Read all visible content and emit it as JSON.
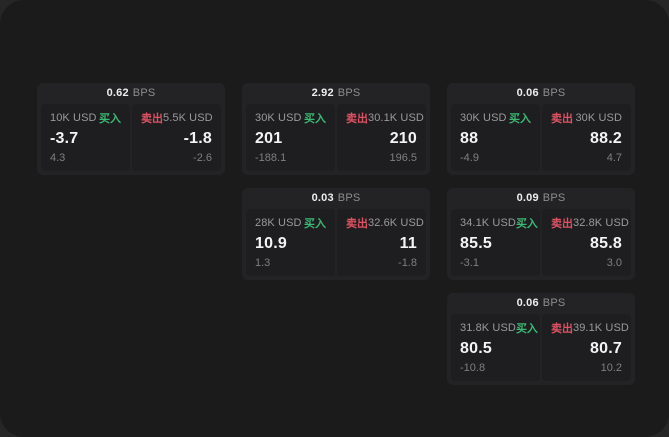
{
  "colors": {
    "buy": "#3bb873",
    "sell": "#dd5263",
    "window_bg": "#1b1b1c",
    "card_bg": "#232325",
    "panel_bg": "#1e1e20"
  },
  "bps_unit": "BPS",
  "cards": [
    {
      "row": 1,
      "col": 1,
      "bps_value": "0.62",
      "bps_label": "BPS",
      "buy": {
        "amount": "10K USD",
        "side": "买入",
        "price": "-3.7",
        "delta": "4.3"
      },
      "sell": {
        "side": "卖出",
        "amount": "5.5K USD",
        "price": "-1.8",
        "delta": "-2.6"
      }
    },
    {
      "row": 1,
      "col": 2,
      "bps_value": "2.92",
      "bps_label": "BPS",
      "buy": {
        "amount": "30K USD",
        "side": "买入",
        "price": "201",
        "delta": "-188.1"
      },
      "sell": {
        "side": "卖出",
        "amount": "30.1K USD",
        "price": "210",
        "delta": "196.5"
      }
    },
    {
      "row": 1,
      "col": 3,
      "bps_value": "0.06",
      "bps_label": "BPS",
      "buy": {
        "amount": "30K USD",
        "side": "买入",
        "price": "88",
        "delta": "-4.9"
      },
      "sell": {
        "side": "卖出",
        "amount": "30K USD",
        "price": "88.2",
        "delta": "4.7"
      }
    },
    {
      "row": 2,
      "col": 2,
      "bps_value": "0.03",
      "bps_label": "BPS",
      "buy": {
        "amount": "28K USD",
        "side": "买入",
        "price": "10.9",
        "delta": "1.3"
      },
      "sell": {
        "side": "卖出",
        "amount": "32.6K USD",
        "price": "11",
        "delta": "-1.8"
      }
    },
    {
      "row": 2,
      "col": 3,
      "bps_value": "0.09",
      "bps_label": "BPS",
      "buy": {
        "amount": "34.1K USD",
        "side": "买入",
        "price": "85.5",
        "delta": "-3.1"
      },
      "sell": {
        "side": "卖出",
        "amount": "32.8K USD",
        "price": "85.8",
        "delta": "3.0"
      }
    },
    {
      "row": 3,
      "col": 3,
      "bps_value": "0.06",
      "bps_label": "BPS",
      "buy": {
        "amount": "31.8K USD",
        "side": "买入",
        "price": "80.5",
        "delta": "-10.8"
      },
      "sell": {
        "side": "卖出",
        "amount": "39.1K USD",
        "price": "80.7",
        "delta": "10.2"
      }
    }
  ]
}
